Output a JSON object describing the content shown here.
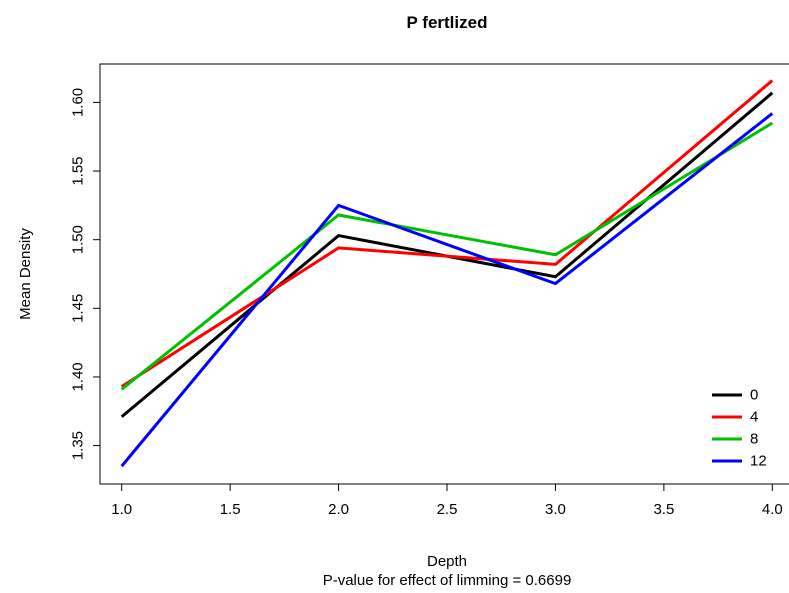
{
  "chart_data": {
    "type": "line",
    "title": "P fertlized",
    "xlabel": "Depth",
    "subtitle": "P-value for effect of limming = 0.6699",
    "ylabel": "Mean Density",
    "x": [
      1.0,
      2.0,
      3.0,
      4.0
    ],
    "xlim": [
      0.9,
      4.1
    ],
    "ylim": [
      1.322,
      1.628
    ],
    "xticks": [
      "1.0",
      "1.5",
      "2.0",
      "2.5",
      "3.0",
      "3.5",
      "4.0"
    ],
    "yticks": [
      "1.35",
      "1.40",
      "1.45",
      "1.50",
      "1.55",
      "1.60"
    ],
    "grid": false,
    "legend_position": "bottom-right",
    "series": [
      {
        "name": "0",
        "color": "#000000",
        "values": [
          1.371,
          1.503,
          1.473,
          1.607
        ]
      },
      {
        "name": "4",
        "color": "#ff0000",
        "values": [
          1.393,
          1.494,
          1.482,
          1.616
        ]
      },
      {
        "name": "8",
        "color": "#00c000",
        "values": [
          1.391,
          1.518,
          1.489,
          1.585
        ]
      },
      {
        "name": "12",
        "color": "#0000ff",
        "values": [
          1.335,
          1.525,
          1.468,
          1.592
        ]
      }
    ]
  }
}
